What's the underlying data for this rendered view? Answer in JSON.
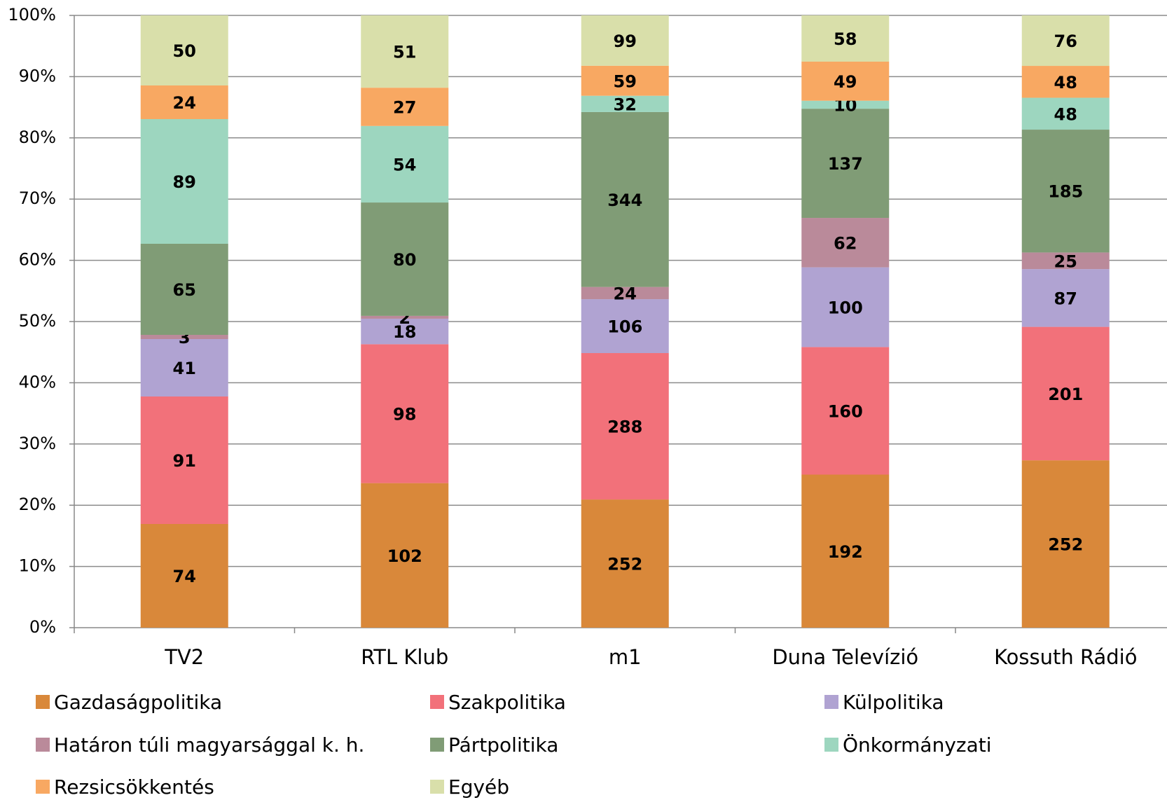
{
  "chart_data": {
    "type": "bar",
    "stacked": "percent",
    "categories": [
      "TV2",
      "RTL Klub",
      "m1",
      "Duna Televízió",
      "Kossuth Rádió"
    ],
    "series": [
      {
        "name": "Gazdaságpolitika",
        "color": "#d9883a",
        "values": [
          74,
          102,
          252,
          192,
          252
        ]
      },
      {
        "name": "Szakpolitika",
        "color": "#f2717a",
        "values": [
          91,
          98,
          288,
          160,
          201
        ]
      },
      {
        "name": "Külpolitika",
        "color": "#b0a3d2",
        "values": [
          41,
          18,
          106,
          100,
          87
        ]
      },
      {
        "name": "Határon túli magyarsággal k. h.",
        "color": "#ba8a9a",
        "values": [
          3,
          2,
          24,
          62,
          25
        ]
      },
      {
        "name": "Pártpolitika",
        "color": "#809c76",
        "values": [
          65,
          80,
          344,
          137,
          185
        ]
      },
      {
        "name": "Önkormányzati",
        "color": "#9dd6bf",
        "values": [
          89,
          54,
          32,
          10,
          48
        ]
      },
      {
        "name": "Rezsicsökkentés",
        "color": "#f8a862",
        "values": [
          24,
          27,
          59,
          49,
          48
        ]
      },
      {
        "name": "Egyéb",
        "color": "#d9dfaa",
        "values": [
          50,
          51,
          99,
          58,
          76
        ]
      }
    ],
    "ylim": [
      0,
      100
    ],
    "yticks": [
      {
        "value": 0,
        "label": "0%"
      },
      {
        "value": 10,
        "label": "10%"
      },
      {
        "value": 20,
        "label": "20%"
      },
      {
        "value": 30,
        "label": "30%"
      },
      {
        "value": 40,
        "label": "40%"
      },
      {
        "value": 50,
        "label": "50%"
      },
      {
        "value": 60,
        "label": "60%"
      },
      {
        "value": 70,
        "label": "70%"
      },
      {
        "value": 80,
        "label": "80%"
      },
      {
        "value": 90,
        "label": "90%"
      },
      {
        "value": 100,
        "label": "100%"
      }
    ],
    "grid": true,
    "legend": "bottom"
  }
}
